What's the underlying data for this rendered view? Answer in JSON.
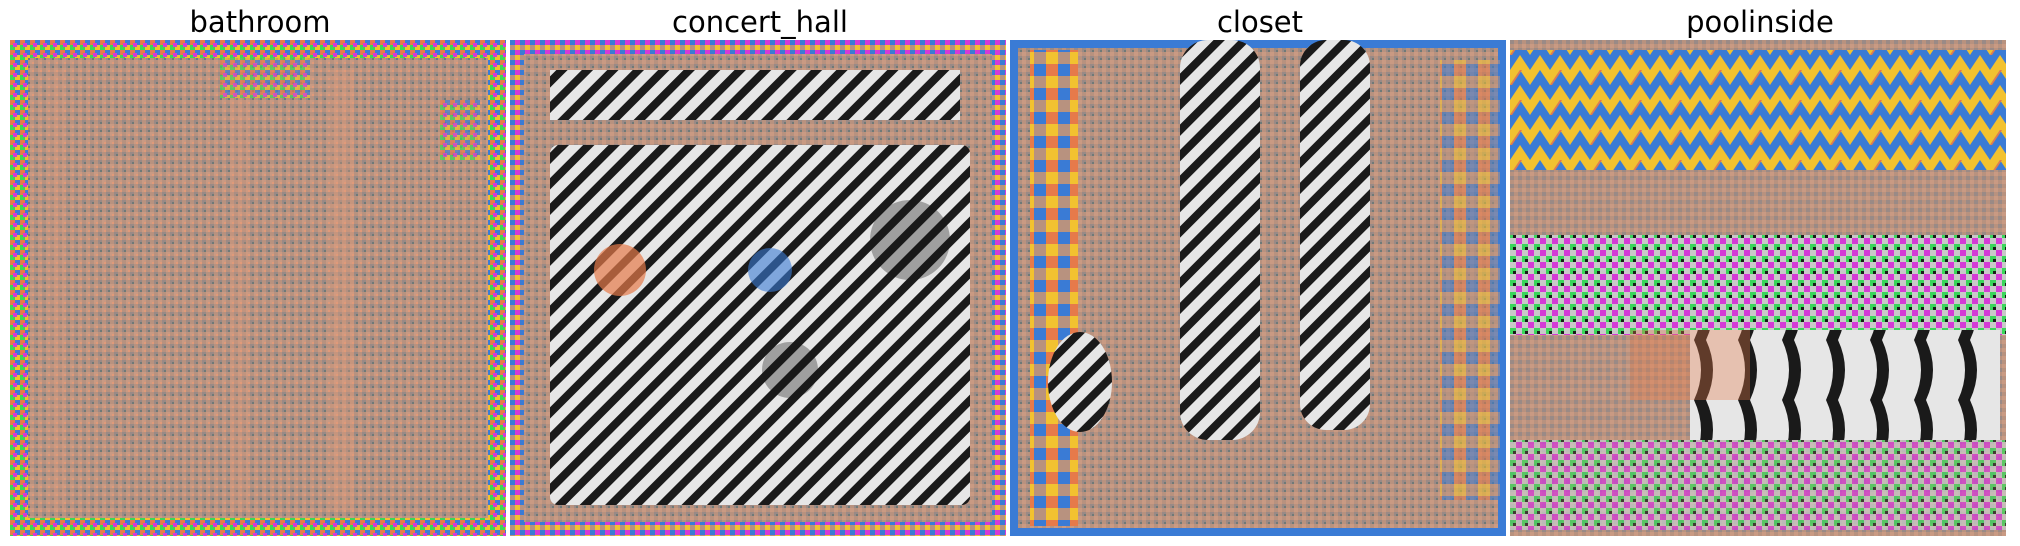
{
  "panels": [
    {
      "title": "bathroom",
      "pattern": "woven-grid",
      "base_color": "#b8927f",
      "accent_colors": [
        "#e67a4a",
        "#3a7bd5",
        "#f2c230",
        "#3ad65a",
        "#d43ad6"
      ],
      "stripe_color": "#1a1a1a",
      "stripe_light": "#e6e6e6"
    },
    {
      "title": "concert_hall",
      "pattern": "diagonal-stripes",
      "base_color": "#b8927f",
      "accent_colors": [
        "#e67a4a",
        "#3a7bd5",
        "#f2c230",
        "#3ad65a",
        "#d43ad6"
      ],
      "stripe_color": "#1a1a1a",
      "stripe_light": "#e6e6e6"
    },
    {
      "title": "closet",
      "pattern": "vertical-stripe-bars",
      "base_color": "#b8927f",
      "accent_colors": [
        "#e67a4a",
        "#3a7bd5",
        "#f2c230",
        "#3ad65a",
        "#d43ad6"
      ],
      "stripe_color": "#1a1a1a",
      "stripe_light": "#e6e6e6"
    },
    {
      "title": "poolinside",
      "pattern": "zigzag-bands",
      "base_color": "#b8927f",
      "accent_colors": [
        "#e67a4a",
        "#3a7bd5",
        "#f2c230",
        "#3ad65a",
        "#d43ad6"
      ],
      "stripe_color": "#1a1a1a",
      "stripe_light": "#e6e6e6"
    }
  ]
}
